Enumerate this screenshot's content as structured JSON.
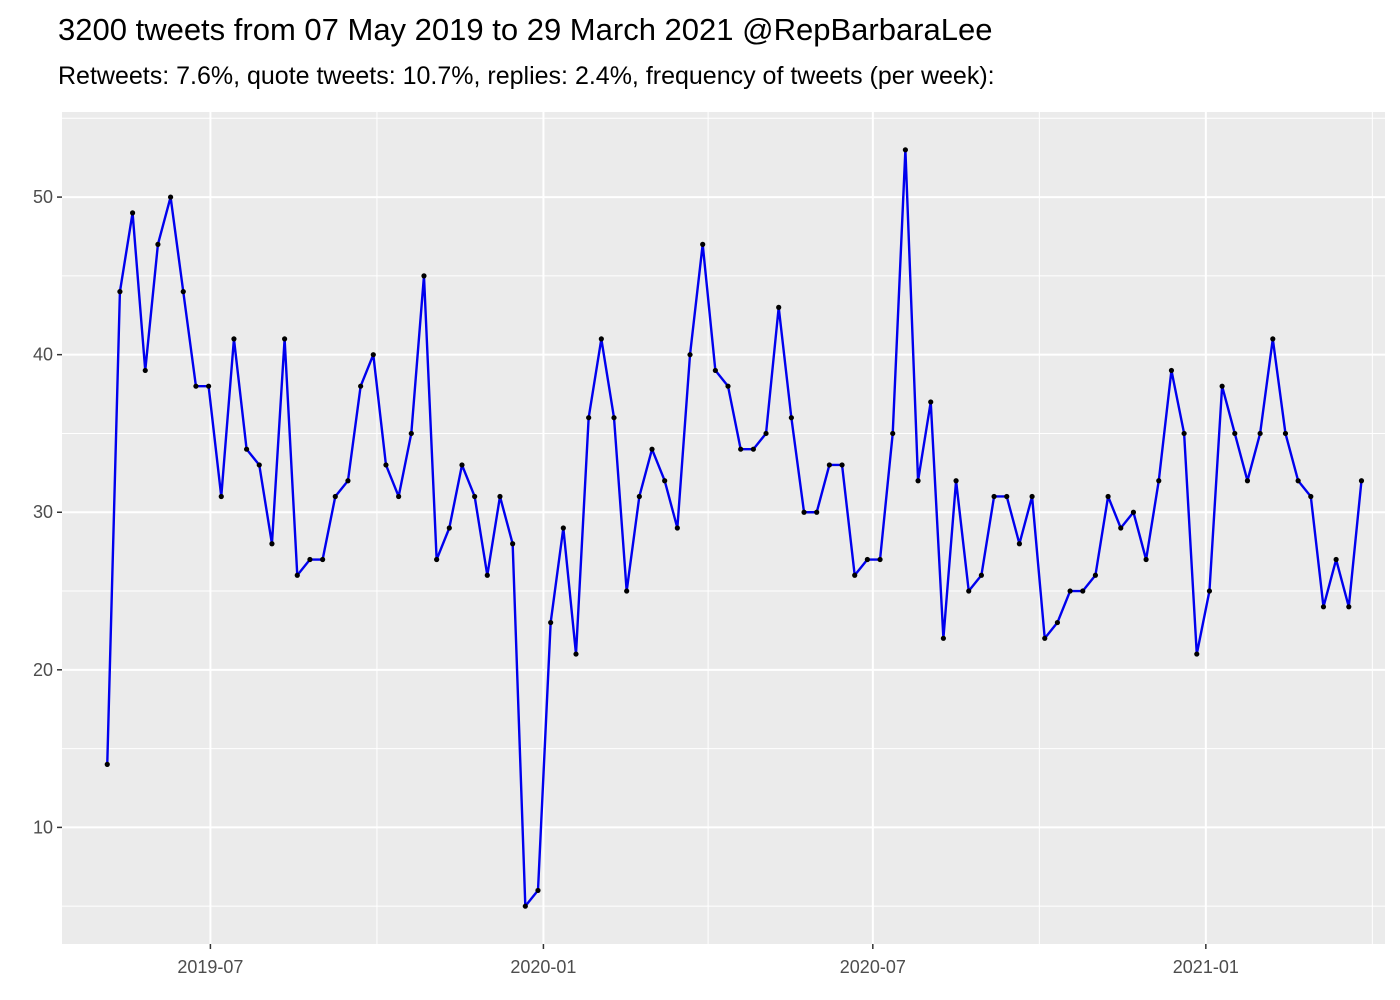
{
  "chart_data": {
    "type": "line",
    "title": "3200 tweets from 07 May 2019 to 29 March 2021 @RepBarbaraLee",
    "subtitle": "Retweets: 7.6%, quote tweets: 10.7%, replies: 2.4%, frequency of tweets (per week):",
    "xlabel": "",
    "ylabel": "",
    "x_start": "2019-05-05",
    "x_step_days": 7,
    "values": [
      14,
      44,
      49,
      39,
      47,
      50,
      44,
      38,
      38,
      31,
      41,
      34,
      33,
      28,
      41,
      26,
      27,
      27,
      31,
      32,
      38,
      40,
      33,
      31,
      35,
      45,
      27,
      29,
      33,
      31,
      26,
      31,
      28,
      5,
      6,
      23,
      29,
      21,
      36,
      41,
      36,
      25,
      31,
      34,
      32,
      29,
      40,
      47,
      39,
      38,
      34,
      34,
      35,
      43,
      36,
      30,
      30,
      33,
      33,
      26,
      27,
      27,
      35,
      53,
      32,
      37,
      22,
      32,
      25,
      26,
      31,
      31,
      28,
      31,
      22,
      23,
      25,
      25,
      26,
      31,
      29,
      30,
      27,
      32,
      39,
      35,
      21,
      25,
      38,
      35,
      32,
      35,
      41,
      35,
      32,
      31,
      24,
      27,
      24,
      32
    ],
    "xlim": [
      "2019-04-10",
      "2021-04-10"
    ],
    "ylim": [
      2.6,
      55.4
    ],
    "x_ticks": [
      "2019-07",
      "2020-01",
      "2020-07",
      "2021-01"
    ],
    "x_tick_dates": [
      "2019-07-01",
      "2020-01-01",
      "2020-07-01",
      "2021-01-01"
    ],
    "y_ticks": [
      10,
      20,
      30,
      40,
      50
    ],
    "line_color": "#0000ee",
    "point_color": "#000000",
    "panel_color": "#ebebeb",
    "grid_color": "#ffffff",
    "grid": true
  }
}
